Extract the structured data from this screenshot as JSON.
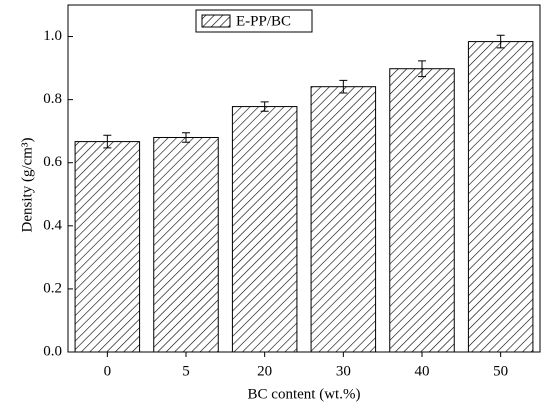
{
  "chart_data": {
    "type": "bar",
    "x_label": "BC content (wt.%)",
    "y_label": "Density (g/cm³)",
    "categories": [
      "0",
      "5",
      "20",
      "30",
      "40",
      "50"
    ],
    "series": [
      {
        "name": "E-PP/BC",
        "color": "#000000",
        "values": [
          0.667,
          0.68,
          0.778,
          0.841,
          0.898,
          0.984
        ],
        "errors": [
          0.02,
          0.015,
          0.015,
          0.02,
          0.025,
          0.02
        ]
      }
    ],
    "ylim": [
      0,
      1.1
    ],
    "yticks": [
      {
        "value": 0,
        "label": "0.0"
      },
      0.2,
      0.4,
      0.6,
      0.8,
      {
        "value": 1,
        "label": "1.0"
      }
    ],
    "legend": "top"
  }
}
